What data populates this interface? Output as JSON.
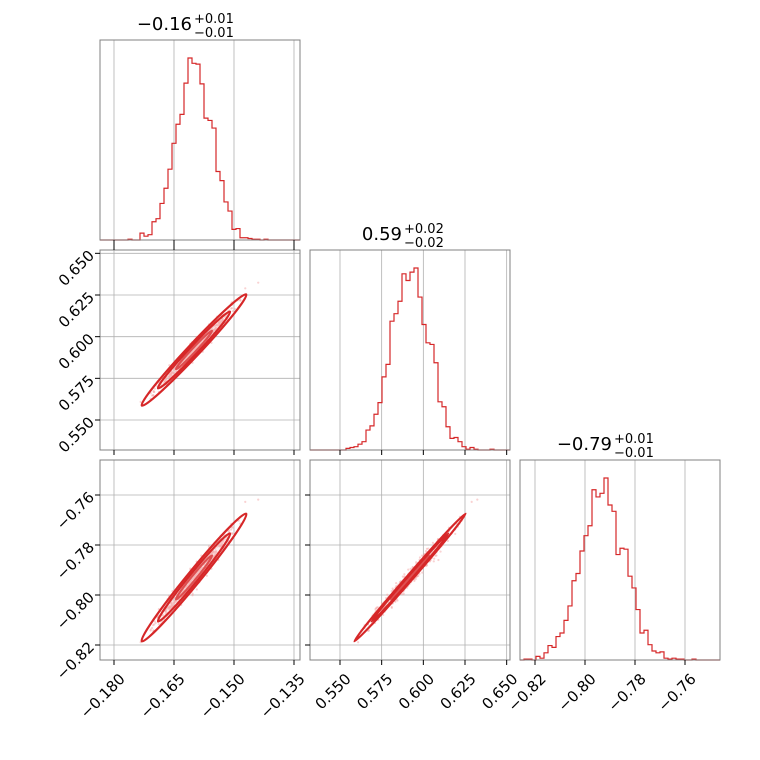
{
  "colors": {
    "main": "#d62728",
    "points": "#f4a6a6",
    "fill": "#f8c8c8",
    "grid": "#b0b0b0",
    "frame": "#808080"
  },
  "chart_data": {
    "type": "corner",
    "params": [
      {
        "title_main": "−0.16",
        "title_up": "+0.01",
        "title_down": "−0.01",
        "range": [
          -0.1835,
          -0.1335
        ],
        "median": -0.16,
        "sigma": 0.0045,
        "ticks": [
          -0.18,
          -0.165,
          -0.15,
          -0.135
        ],
        "tick_labels": [
          "−0.180",
          "−0.165",
          "−0.150",
          "−0.135"
        ]
      },
      {
        "title_main": "0.59",
        "title_up": "+0.02",
        "title_down": "−0.02",
        "range": [
          0.532,
          0.652
        ],
        "median": 0.592,
        "sigma": 0.0115,
        "ticks": [
          0.55,
          0.575,
          0.6,
          0.625,
          0.65
        ],
        "tick_labels": [
          "0.550",
          "0.575",
          "0.600",
          "0.625",
          "0.650"
        ]
      },
      {
        "title_main": "−0.79",
        "title_up": "+0.01",
        "title_down": "−0.01",
        "range": [
          -0.826,
          -0.746
        ],
        "median": -0.793,
        "sigma": 0.0088,
        "ticks": [
          -0.82,
          -0.8,
          -0.78,
          -0.76
        ],
        "tick_labels": [
          "−0.82",
          "−0.80",
          "−0.78",
          "−0.76"
        ]
      }
    ],
    "grid": true
  }
}
